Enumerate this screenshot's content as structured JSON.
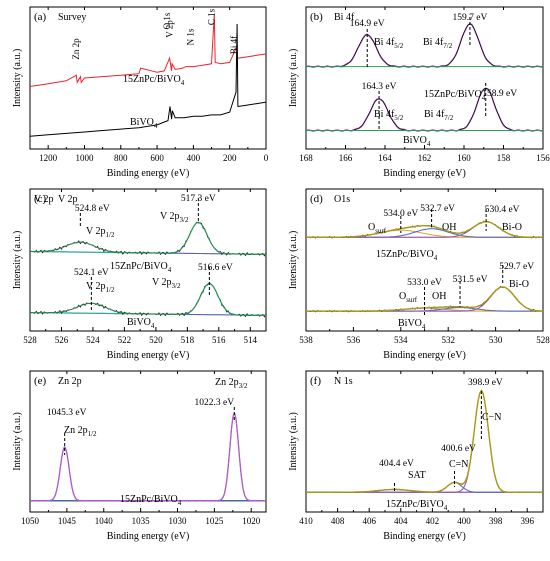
{
  "colors": {
    "black": "#000000",
    "red": "#e5262c",
    "magenta": "#b35cc9",
    "green": "#2e9d44",
    "teal": "#2ea6a6",
    "blue": "#4a63c8",
    "orange": "#e0a33a",
    "purple": "#8a4fc2",
    "olive": "#a79b16",
    "darkgreen": "#4a7d32"
  },
  "chart_data": [
    {
      "id": "a",
      "type": "line",
      "panel_label": "(a)",
      "title": "Survey",
      "xlabel": "Binding energy (eV)",
      "ylabel": "Intensity (a.u.)",
      "xlim": [
        1300,
        0
      ],
      "xticks": [
        "1200",
        "1000",
        "800",
        "600",
        "400",
        "200",
        "0"
      ],
      "xtick_values": [
        1200,
        1000,
        800,
        600,
        400,
        200,
        0
      ],
      "ylim": [
        0,
        100
      ],
      "series": [
        {
          "name": "15ZnPc/BiVO4",
          "color": "red",
          "x": [
            1300,
            1250,
            1200,
            1150,
            1100,
            1045,
            1040,
            1022,
            1018,
            1000,
            900,
            800,
            700,
            690,
            600,
            560,
            531,
            520,
            517,
            500,
            460,
            440,
            400,
            350,
            300,
            285,
            280,
            250,
            200,
            165,
            160,
            158,
            150,
            100,
            50,
            0
          ],
          "y": [
            44,
            45,
            46,
            47,
            48,
            52,
            47,
            51,
            47,
            50,
            51,
            52,
            53,
            57,
            54,
            55,
            64,
            55,
            60,
            56,
            57,
            58,
            58,
            59,
            60,
            95,
            61,
            60,
            61,
            71,
            70,
            64,
            64,
            65,
            66,
            67
          ]
        },
        {
          "name": "BiVO4",
          "color": "black",
          "x": [
            1300,
            1200,
            1100,
            1000,
            900,
            800,
            700,
            600,
            560,
            540,
            529,
            520,
            516,
            500,
            450,
            400,
            350,
            300,
            250,
            200,
            165,
            159,
            155,
            150,
            100,
            50,
            0
          ],
          "y": [
            9,
            10,
            11,
            12,
            13,
            14,
            15,
            17,
            19,
            20,
            30,
            21,
            27,
            22,
            22,
            23,
            23,
            24,
            24,
            26,
            40,
            88,
            30,
            30,
            31,
            32,
            33
          ]
        }
      ],
      "annotations": [
        {
          "text": "Zn 2p",
          "x": 1030
        },
        {
          "text": "O 1s",
          "x": 530
        },
        {
          "text": "V 2p",
          "x": 515
        },
        {
          "text": "N 1s",
          "x": 400
        },
        {
          "text": "C 1s",
          "x": 285
        },
        {
          "text": "Bi 4f",
          "x": 160
        }
      ],
      "labels": [
        {
          "text": "15ZnPc/BiVO",
          "sub": "4"
        },
        {
          "text": "BiVO",
          "sub": "4"
        }
      ]
    },
    {
      "id": "b",
      "type": "line",
      "panel_label": "(b)",
      "title": "Bi 4f",
      "xlabel": "Binding energy (eV)",
      "ylabel": "Intensity (a.u.)",
      "xlim": [
        168,
        156
      ],
      "xticks": [
        "168",
        "166",
        "164",
        "162",
        "160",
        "158",
        "156"
      ],
      "xtick_values": [
        168,
        166,
        164,
        162,
        160,
        158,
        156
      ],
      "ylim": [
        0,
        100
      ],
      "peaks": [
        {
          "label": "164.9 eV",
          "x": 164.9
        },
        {
          "label": "159.7 eV",
          "x": 159.7
        },
        {
          "label": "164.3 eV",
          "x": 164.3
        },
        {
          "label": "158.9 eV",
          "x": 158.9
        }
      ],
      "sublabels": [
        {
          "text": "Bi 4f",
          "sub": "5/2"
        },
        {
          "text": "Bi 4f",
          "sub": "7/2"
        },
        {
          "text": "Bi 4f",
          "sub": "5/2"
        },
        {
          "text": "Bi 4f",
          "sub": "7/2"
        }
      ],
      "labels": [
        {
          "text": "15ZnPc/BiVO",
          "sub": "4"
        },
        {
          "text": "BiVO",
          "sub": "4"
        }
      ]
    },
    {
      "id": "c",
      "type": "line",
      "panel_label": "(c)",
      "title": "V 2p",
      "xlabel": "Binding energy (eV)",
      "ylabel": "Intensity (a.u.)",
      "xlim": [
        528,
        513
      ],
      "xticks": [
        "528",
        "526",
        "524",
        "522",
        "520",
        "518",
        "516",
        "514"
      ],
      "xtick_values": [
        528,
        526,
        524,
        522,
        520,
        518,
        516,
        514
      ],
      "ylim": [
        0,
        100
      ],
      "peaks": [
        {
          "label": "524.8 eV",
          "x": 524.8
        },
        {
          "label": "517.3 eV",
          "x": 517.3
        },
        {
          "label": "524.1 eV",
          "x": 524.1
        },
        {
          "label": "516.6 eV",
          "x": 516.6
        }
      ],
      "sublabels": [
        {
          "text": "V 2p",
          "sub": "1/2"
        },
        {
          "text": "V 2p",
          "sub": "3/2"
        },
        {
          "text": "V 2p",
          "sub": "1/2"
        },
        {
          "text": "V 2p",
          "sub": "3/2"
        }
      ],
      "labels": [
        {
          "text": "15ZnPc/BiVO",
          "sub": "4"
        },
        {
          "text": "BiVO",
          "sub": "4"
        }
      ]
    },
    {
      "id": "d",
      "type": "line",
      "panel_label": "(d)",
      "title": "O1s",
      "xlabel": "Binding energy (eV)",
      "ylabel": "Intensity (a.u.)",
      "xlim": [
        538,
        528
      ],
      "xticks": [
        "538",
        "536",
        "534",
        "532",
        "530",
        "528"
      ],
      "xtick_values": [
        538,
        536,
        534,
        532,
        530,
        528
      ],
      "ylim": [
        0,
        100
      ],
      "peaks": [
        {
          "label": "534.0 eV",
          "x": 534.0
        },
        {
          "label": "532.7 eV",
          "x": 532.7
        },
        {
          "label": "530.4 eV",
          "x": 530.4
        },
        {
          "label": "533.0 eV",
          "x": 533.0
        },
        {
          "label": "531.5 eV",
          "x": 531.5
        },
        {
          "label": "529.7 eV",
          "x": 529.7
        }
      ],
      "sublabels": [
        {
          "text": "O",
          "sub": "surf"
        },
        {
          "text": "OH",
          "sub": ""
        },
        {
          "text": "Bi-O",
          "sub": ""
        },
        {
          "text": "O",
          "sub": "surf"
        },
        {
          "text": "OH",
          "sub": ""
        },
        {
          "text": "Bi-O",
          "sub": ""
        }
      ],
      "labels": [
        {
          "text": "15ZnPc/BiVO",
          "sub": "4"
        },
        {
          "text": "BiVO",
          "sub": "4"
        }
      ]
    },
    {
      "id": "e",
      "type": "line",
      "panel_label": "(e)",
      "title": "Zn 2p",
      "xlabel": "Binding energy (eV)",
      "ylabel": "Intensity (a.u.)",
      "xlim": [
        1050,
        1018
      ],
      "xticks": [
        "1050",
        "1045",
        "1040",
        "1035",
        "1030",
        "1025",
        "1020"
      ],
      "xtick_values": [
        1050,
        1045,
        1040,
        1035,
        1030,
        1025,
        1020
      ],
      "ylim": [
        0,
        100
      ],
      "peaks": [
        {
          "label": "1045.3 eV",
          "x": 1045.3
        },
        {
          "label": "1022.3 eV",
          "x": 1022.3
        }
      ],
      "sublabels": [
        {
          "text": "Zn 2p",
          "sub": "1/2"
        },
        {
          "text": "Zn 2p",
          "sub": "3/2"
        }
      ],
      "labels": [
        {
          "text": "15ZnPc/BiVO",
          "sub": "4"
        }
      ]
    },
    {
      "id": "f",
      "type": "line",
      "panel_label": "(f)",
      "title": "N 1s",
      "xlabel": "Binding energy (eV)",
      "ylabel": "Intensity (a.u.)",
      "xlim": [
        410,
        395
      ],
      "xticks": [
        "410",
        "408",
        "406",
        "404",
        "402",
        "400",
        "398",
        "396"
      ],
      "xtick_values": [
        410,
        408,
        406,
        404,
        402,
        400,
        398,
        396
      ],
      "ylim": [
        0,
        100
      ],
      "peaks": [
        {
          "label": "404.4 eV",
          "x": 404.4
        },
        {
          "label": "400.6 eV",
          "x": 400.6
        },
        {
          "label": "398.9 eV",
          "x": 398.9
        }
      ],
      "sublabels": [
        {
          "text": "SAT",
          "sub": ""
        },
        {
          "text": "C=N",
          "sub": ""
        },
        {
          "text": "C−N",
          "sub": ""
        }
      ],
      "labels": [
        {
          "text": "15ZnPc/BiVO",
          "sub": "4"
        }
      ]
    }
  ]
}
